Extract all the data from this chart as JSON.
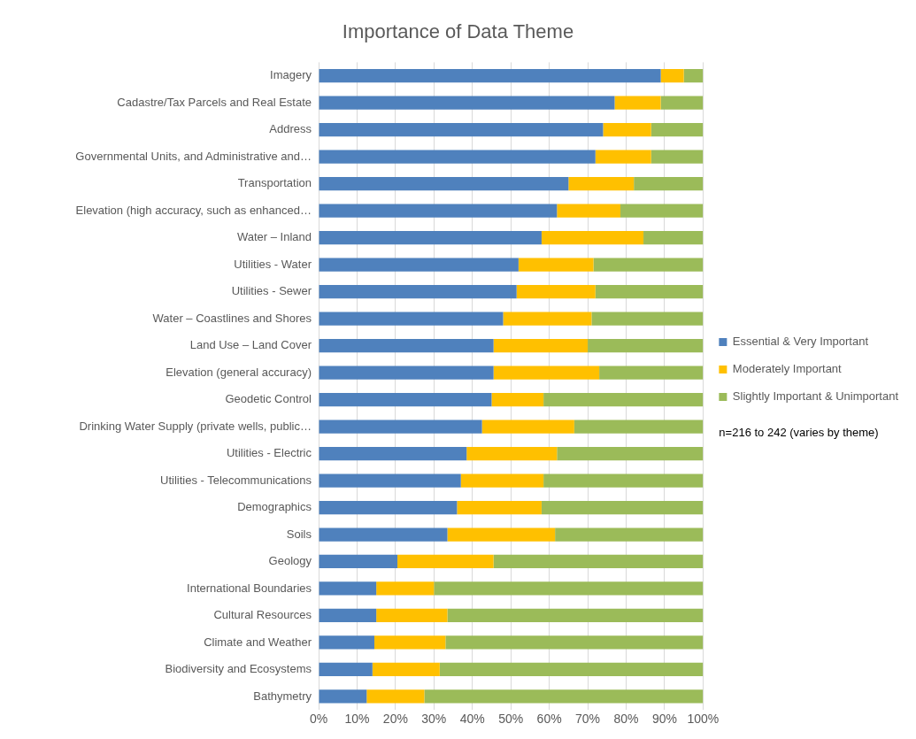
{
  "chart_data": {
    "type": "bar",
    "title": "Importance of Data Theme",
    "orientation": "horizontal",
    "stacked": true,
    "grid": "x",
    "legend": "right",
    "categories": [
      "Imagery",
      "Cadastre/Tax Parcels and Real Estate",
      "Address",
      "Governmental Units, and Administrative and…",
      "Transportation",
      "Elevation (high accuracy, such as enhanced…",
      "Water – Inland",
      "Utilities - Water",
      "Utilities - Sewer",
      "Water – Coastlines and Shores",
      "Land Use – Land Cover",
      "Elevation (general accuracy)",
      "Geodetic Control",
      "Drinking Water Supply (private wells, public…",
      "Utilities - Electric",
      "Utilities - Telecommunications",
      "Demographics",
      "Soils",
      "Geology",
      "International Boundaries",
      "Cultural Resources",
      "Climate and Weather",
      "Biodiversity and Ecosystems",
      "Bathymetry"
    ],
    "series": [
      {
        "name": "Essential & Very Important",
        "color": "#4f81bd",
        "values": [
          89,
          77,
          74,
          72,
          65,
          62,
          58,
          52,
          51.5,
          48,
          45.5,
          45.5,
          45,
          42.5,
          38.5,
          37,
          36,
          33.5,
          20.5,
          15,
          15,
          14.5,
          14,
          12.5
        ]
      },
      {
        "name": "Moderately Important",
        "color": "#ffc000",
        "values": [
          6,
          12,
          12.5,
          14.5,
          17,
          16.5,
          26.5,
          19.5,
          20.5,
          23,
          24.5,
          27.5,
          13.5,
          24,
          23.5,
          21.5,
          22,
          28,
          25,
          15,
          18.5,
          18.5,
          17.5,
          15
        ]
      },
      {
        "name": "Slightly Important & Unimportant",
        "color": "#9bbb59",
        "values": [
          5,
          11,
          13.5,
          13.5,
          18,
          21.5,
          15.5,
          28.5,
          28,
          29,
          30,
          27,
          41.5,
          33.5,
          38,
          41.5,
          42,
          38.5,
          54.5,
          70,
          66.5,
          67,
          68.5,
          72.5
        ]
      }
    ],
    "xlim": [
      0,
      100
    ],
    "xticks": [
      {
        "value": 0,
        "label": "0%"
      },
      {
        "value": 10,
        "label": "10%"
      },
      {
        "value": 20,
        "label": "20%"
      },
      {
        "value": 30,
        "label": "30%"
      },
      {
        "value": 40,
        "label": "40%"
      },
      {
        "value": 50,
        "label": "50%"
      },
      {
        "value": 60,
        "label": "60%"
      },
      {
        "value": 70,
        "label": "70%"
      },
      {
        "value": 80,
        "label": "80%"
      },
      {
        "value": 90,
        "label": "90%"
      },
      {
        "value": 100,
        "label": "100%"
      }
    ],
    "annotations": [
      "n=216 to 242 (varies by theme)"
    ]
  }
}
